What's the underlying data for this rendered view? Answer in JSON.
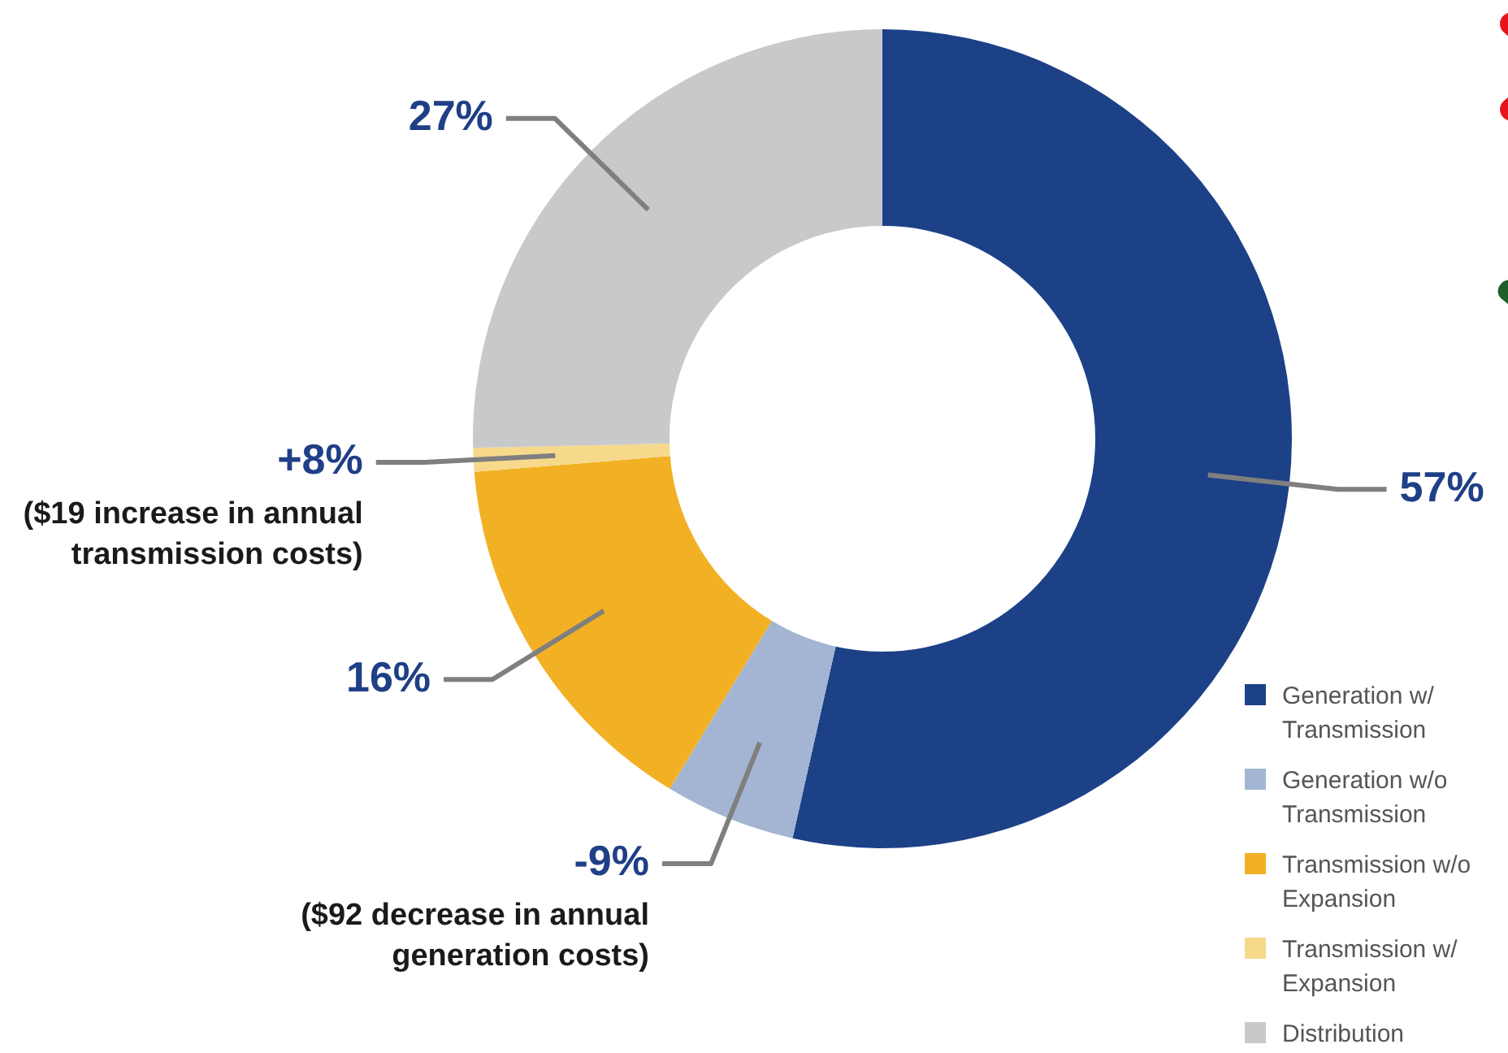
{
  "chart_data": {
    "type": "donut",
    "categories": [
      "Generation w/ Transmission",
      "Generation w/o Transmission",
      "Transmission w/o Expansion",
      "Transmission w/ Expansion",
      "Distribution"
    ],
    "values": [
      57,
      5.5,
      16,
      1,
      27
    ],
    "colors": [
      "#1c4187",
      "#a3b5d2",
      "#f2b124",
      "#f7d98c",
      "#c8c9cb"
    ],
    "value_labels": [
      "57%",
      null,
      "16%",
      null,
      "27%"
    ],
    "annotations": [
      {
        "text": "+8%",
        "x": "Transmission w/ Expansion"
      },
      {
        "text": "($19 increase in annual transmission costs)",
        "x": "Transmission w/ Expansion"
      },
      {
        "text": "-9%",
        "x": "Generation w/o Transmission"
      },
      {
        "text": "($92 decrease in annual generation costs)",
        "x": "Generation w/o Transmission"
      }
    ],
    "legend": "bottom right"
  }
}
